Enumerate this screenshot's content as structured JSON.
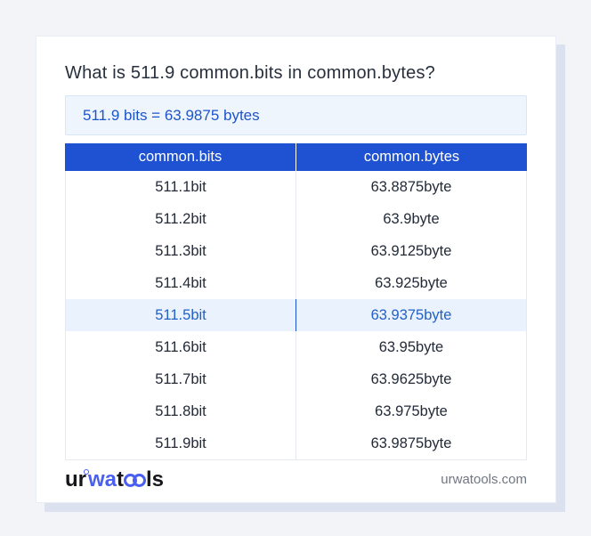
{
  "title": "What is 511.9 common.bits in common.bytes?",
  "answer": {
    "text": "511.9 bits = 63.9875 bytes"
  },
  "table": {
    "headers": [
      "common.bits",
      "common.bytes"
    ],
    "rows": [
      [
        "511.1bit",
        "63.8875byte"
      ],
      [
        "511.2bit",
        "63.9byte"
      ],
      [
        "511.3bit",
        "63.9125byte"
      ],
      [
        "511.4bit",
        "63.925byte"
      ],
      [
        "511.5bit",
        "63.9375byte"
      ],
      [
        "511.6bit",
        "63.95byte"
      ],
      [
        "511.7bit",
        "63.9625byte"
      ],
      [
        "511.8bit",
        "63.975byte"
      ],
      [
        "511.9bit",
        "63.9875byte"
      ]
    ],
    "highlighted_index": 4
  },
  "footer": {
    "logo": {
      "part1": "ur",
      "part2": "wa",
      "part3": "t",
      "part4": "ls"
    },
    "site": "urwatools.com"
  },
  "colors": {
    "accent_blue": "#1e52d2",
    "answer_bg": "#eef5fd",
    "answer_text": "#1d55c9",
    "highlight_row_bg": "#e9f2fd",
    "logo_blue": "#4a5ff0",
    "page_bg": "#f2f4f8",
    "card_shadow": "#dbe1ee"
  }
}
